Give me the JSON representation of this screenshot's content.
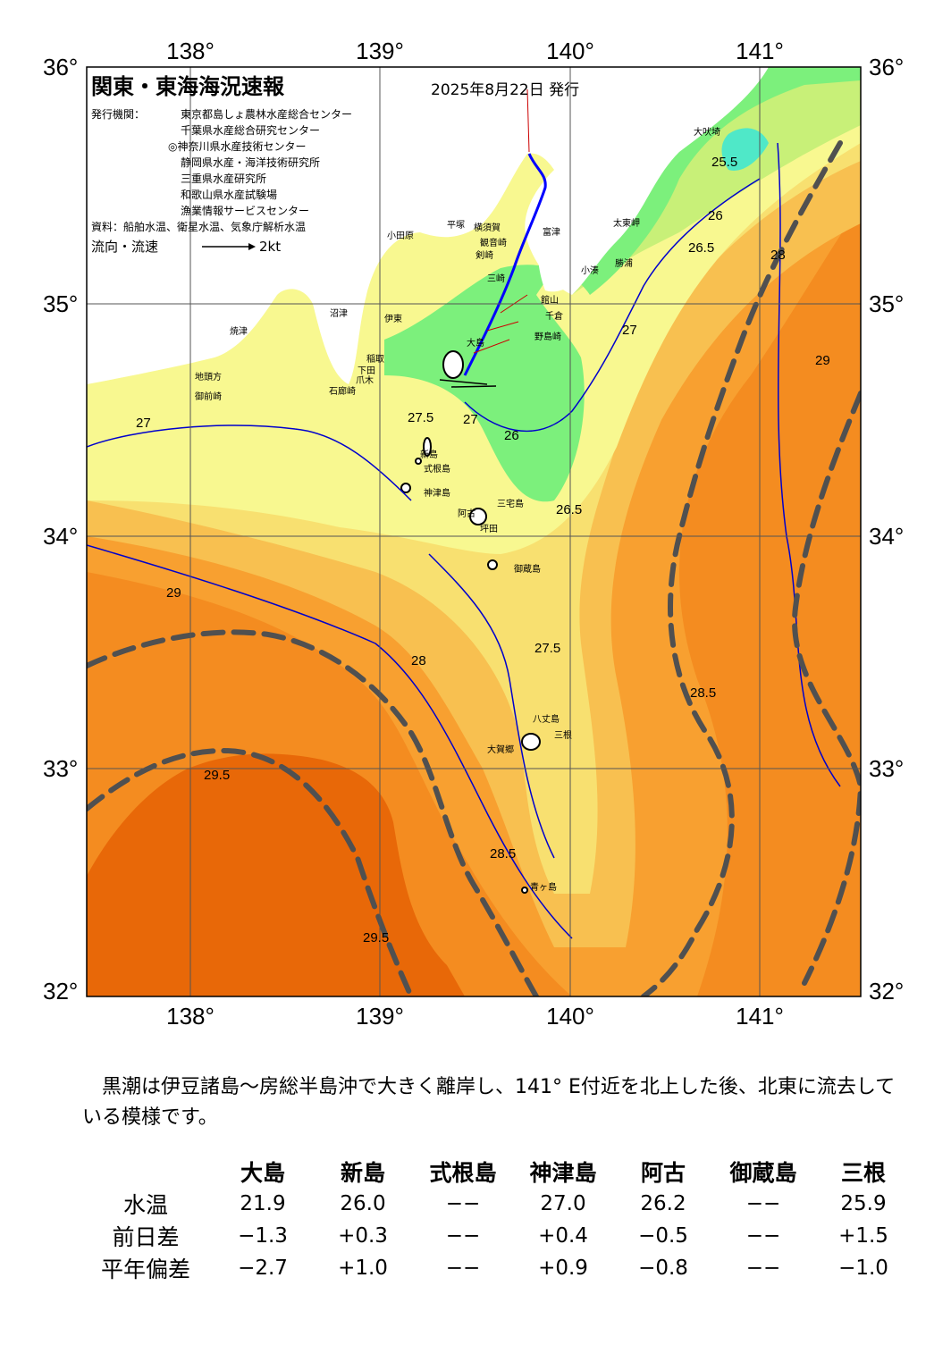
{
  "map": {
    "title": "関東・東海海況速報",
    "issue_date": "2025年8月22日 発行",
    "issuer_label": "発行機関：",
    "issuers": [
      "東京都島しょ農林水産総合センター",
      "千葉県水産総合研究センター",
      "◎神奈川県水産技術センター",
      "静岡県水産・海洋技術研究所",
      "三重県水産研究所",
      "和歌山県水産試験場",
      "漁業情報サービスセンター"
    ],
    "source": "資料：船舶水温、衛星水温、気象庁解析水温",
    "current_legend": "流向・流速",
    "current_scale": "2kt",
    "lon_ticks": [
      "138°",
      "139°",
      "140°",
      "141°"
    ],
    "lat_ticks": [
      "36°",
      "35°",
      "34°",
      "33°",
      "32°"
    ],
    "place_names": [
      {
        "name": "大吠埼"
      },
      {
        "name": "太東岬"
      },
      {
        "name": "勝浦"
      },
      {
        "name": "小湊"
      },
      {
        "name": "富津"
      },
      {
        "name": "館山"
      },
      {
        "name": "千倉"
      },
      {
        "name": "野島崎"
      },
      {
        "name": "横須賀"
      },
      {
        "name": "観音崎"
      },
      {
        "name": "剣崎"
      },
      {
        "name": "三崎"
      },
      {
        "name": "平塚"
      },
      {
        "name": "小田原"
      },
      {
        "name": "沼津"
      },
      {
        "name": "伊東"
      },
      {
        "name": "稲取"
      },
      {
        "name": "下田"
      },
      {
        "name": "石廊崎"
      },
      {
        "name": "爪木"
      },
      {
        "name": "焼津"
      },
      {
        "name": "御前崎"
      },
      {
        "name": "地頭方"
      },
      {
        "name": "大島"
      },
      {
        "name": "新島"
      },
      {
        "name": "式根島"
      },
      {
        "name": "神津島"
      },
      {
        "name": "三宅島"
      },
      {
        "name": "阿古"
      },
      {
        "name": "坪田"
      },
      {
        "name": "御蔵島"
      },
      {
        "name": "八丈島"
      },
      {
        "name": "三根"
      },
      {
        "name": "大賀郷"
      },
      {
        "name": "青ヶ島"
      }
    ],
    "isotherm_labels": [
      "25.5",
      "26",
      "26.5",
      "27",
      "27.5",
      "28",
      "28.5",
      "29",
      "29.5"
    ]
  },
  "summary": "黒潮は伊豆諸島～房総半島沖で大きく離岸し、141° E付近を北上した後、北東に流去している模様です。",
  "table": {
    "stations": [
      "大島",
      "新島",
      "式根島",
      "神津島",
      "阿古",
      "御蔵島",
      "三根"
    ],
    "rows": [
      {
        "label": "水温",
        "values": [
          "21.9",
          "26.0",
          "−−",
          "27.0",
          "26.2",
          "−−",
          "25.9"
        ]
      },
      {
        "label": "前日差",
        "values": [
          "−1.3",
          "+0.3",
          "−−",
          "+0.4",
          "−0.5",
          "−−",
          "+1.5"
        ]
      },
      {
        "label": "平年偏差",
        "values": [
          "−2.7",
          "+1.0",
          "−−",
          "+0.9",
          "−0.8",
          "−−",
          "−1.0"
        ]
      }
    ]
  },
  "colors": {
    "land": "#ffffff",
    "t_25_5": "#4fe8c8",
    "t_26": "#7cf07c",
    "t_26_5": "#c8f078",
    "t_27": "#f8f890",
    "t_27_5": "#f8e070",
    "t_28": "#f8c050",
    "t_28_5": "#f8a030",
    "t_29": "#f48c20",
    "t_29_5": "#e86808",
    "isotherm": "#0000cc",
    "kuroshio": "#505050",
    "current_arrow": "#cc0000",
    "coast_current": "#0000ff"
  }
}
